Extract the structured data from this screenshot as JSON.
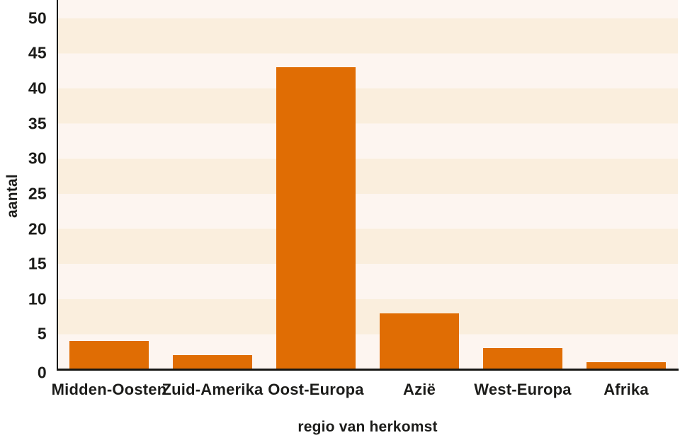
{
  "chart_data": {
    "type": "bar",
    "title": "",
    "categories": [
      "Midden-Oosten",
      "Zuid-Amerika",
      "Oost-Europa",
      "Azië",
      "West-Europa",
      "Afrika"
    ],
    "values": [
      4,
      2,
      43,
      8,
      3,
      1
    ],
    "xlabel": "regio van herkomst",
    "ylabel": "aantal",
    "ylim": [
      0,
      52.6
    ],
    "ytick_step": 5,
    "yticks": [
      0,
      5,
      10,
      15,
      20,
      25,
      30,
      35,
      40,
      45,
      50
    ],
    "grid": "alternating horizontal bands of 5 units, no gridlines",
    "legend": "none",
    "colors": {
      "bar": "#e06d04",
      "band_light": "#fdf5f0",
      "band_dark": "#faeedd",
      "axis": "#161614",
      "text": "#1c1c1a",
      "background": "#ffffff"
    }
  }
}
